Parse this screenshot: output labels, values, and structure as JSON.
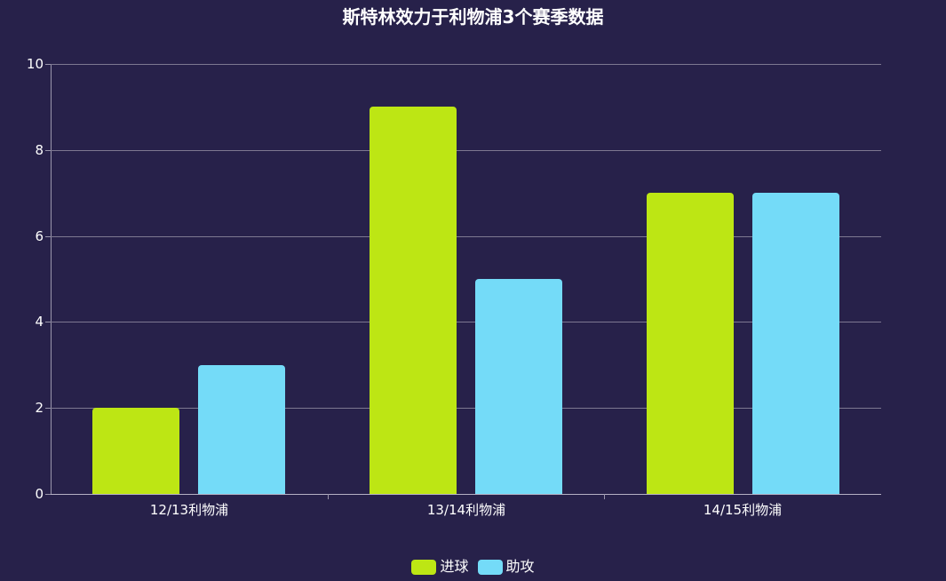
{
  "chart_data": {
    "type": "bar",
    "title": "斯特林效力于利物浦3个赛季数据",
    "categories": [
      "12/13利物浦",
      "13/14利物浦",
      "14/15利物浦"
    ],
    "series": [
      {
        "name": "进球",
        "values": [
          2,
          9,
          7
        ],
        "color": "#bde614"
      },
      {
        "name": "助攻",
        "values": [
          3,
          5,
          7
        ],
        "color": "#74dbf8"
      }
    ],
    "xlabel": "",
    "ylabel": "",
    "ylim": [
      0,
      10
    ],
    "yticks": [
      0,
      2,
      4,
      6,
      8,
      10
    ],
    "grid": true,
    "legend_position": "bottom"
  },
  "colors": {
    "background": "#27214a",
    "gridline": "#7d7891",
    "text": "#ffffff"
  }
}
